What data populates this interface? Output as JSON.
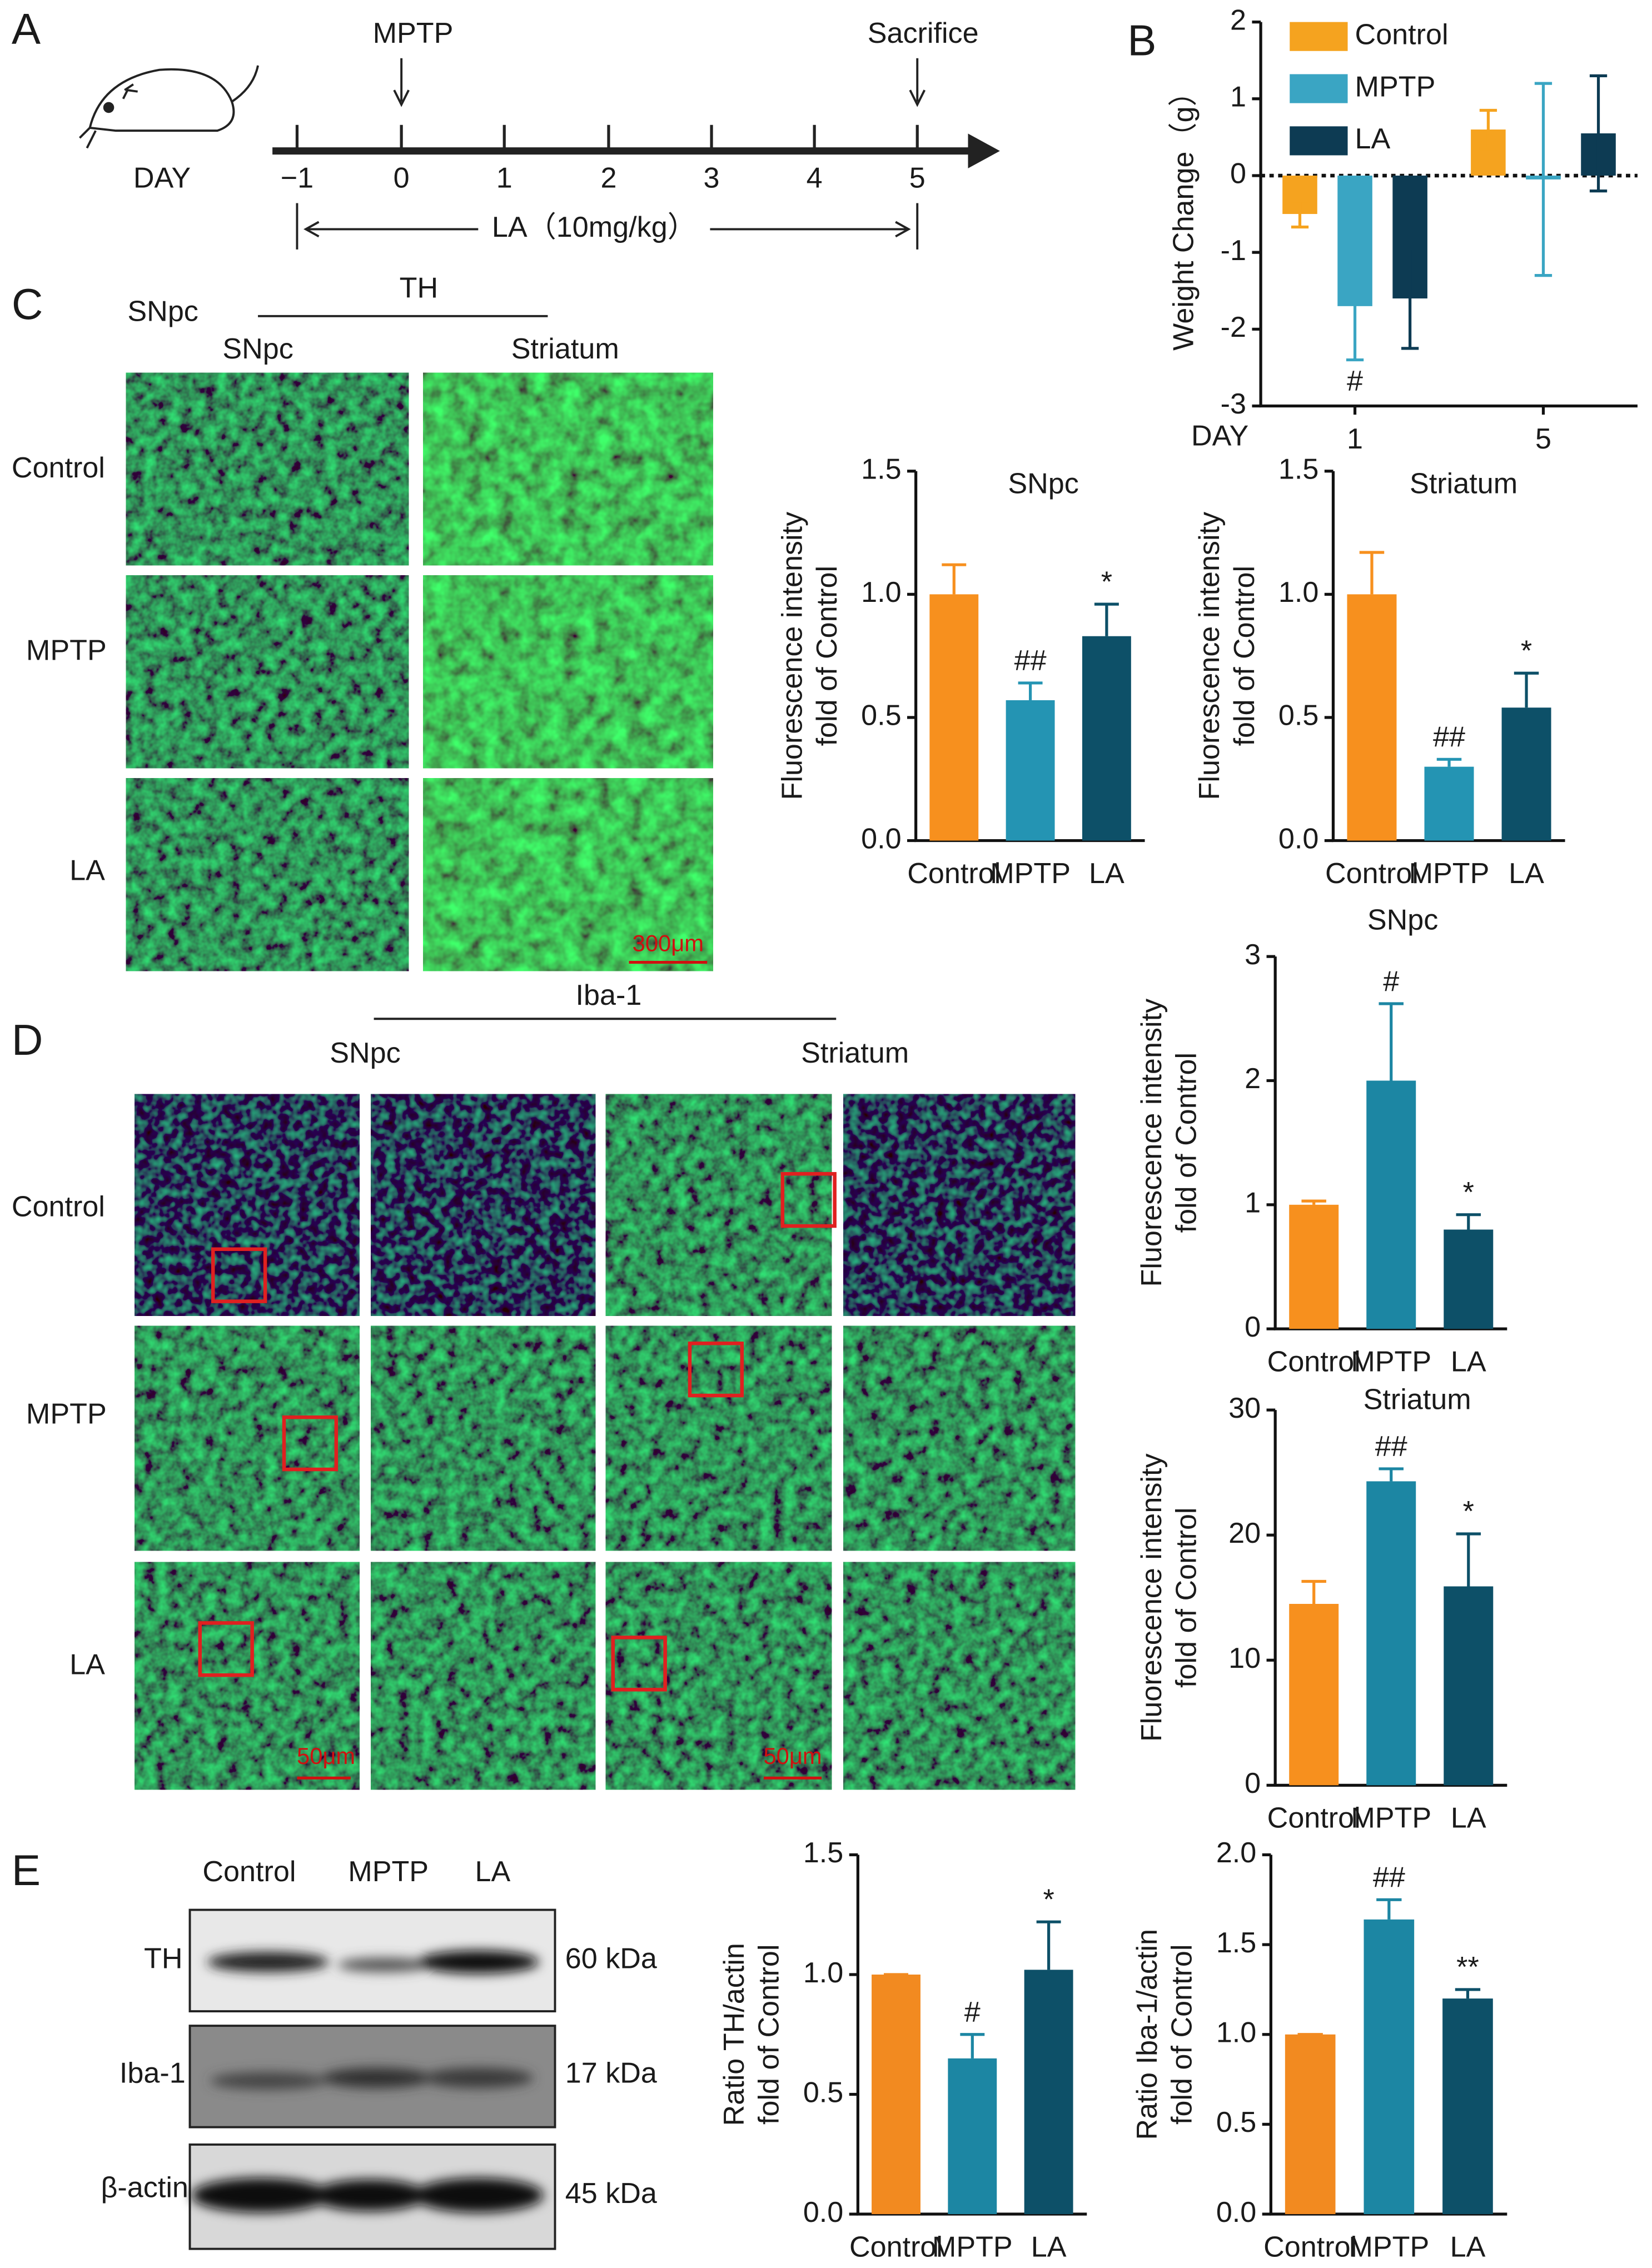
{
  "panel_labels": [
    "A",
    "B",
    "C",
    "D",
    "E"
  ],
  "timeline": {
    "day_label": "DAY",
    "days": [
      "−1",
      "0",
      "1",
      "2",
      "3",
      "4",
      "5"
    ],
    "injection": "MPTP",
    "end": "Sacrifice",
    "treatment": "LA（10mg/kg）"
  },
  "panel_c": {
    "region": "SNpc",
    "stain": "TH",
    "columns": [
      "SNpc",
      "Striatum"
    ],
    "rows": [
      "Control",
      "MPTP",
      "LA"
    ],
    "scale": "300μm"
  },
  "panel_d": {
    "stain": "Iba-1",
    "columns": [
      "SNpc",
      "Striatum"
    ],
    "rows": [
      "Control",
      "MPTP",
      "LA"
    ],
    "scales": [
      "50μm",
      "50μm"
    ]
  },
  "panel_e": {
    "lanes": [
      "Control",
      "MPTP",
      "LA"
    ],
    "proteins": [
      "TH",
      "Iba-1",
      "β-actin"
    ],
    "sizes": [
      "60 kDa",
      "17 kDa",
      "45 kDa"
    ]
  },
  "chart_data": [
    {
      "type": "grouped_bar",
      "ylabel": "Weight Change（g）",
      "x_label": "DAY",
      "categories": [
        "1",
        "5"
      ],
      "series": [
        {
          "name": "Control",
          "color": "#f5a31f",
          "values": [
            -0.5,
            0.6
          ],
          "errors": [
            0.17,
            0.25
          ],
          "annotations": [
            null,
            null
          ]
        },
        {
          "name": "MPTP",
          "color": "#3aa5c3",
          "values": [
            -1.7,
            -0.05
          ],
          "errors": [
            0.7,
            1.25
          ],
          "annotations": [
            "#",
            null
          ]
        },
        {
          "name": "LA",
          "color": "#0d3b53",
          "values": [
            -1.6,
            0.55
          ],
          "errors": [
            0.65,
            0.75
          ],
          "annotations": [
            null,
            null
          ]
        }
      ],
      "ylim": [
        -3,
        2
      ],
      "yticks": [
        -3,
        -2,
        -1,
        0,
        1,
        2
      ]
    },
    {
      "type": "bar",
      "title": "SNpc",
      "ylabel": [
        "Fluorescence intensity",
        "fold of Control"
      ],
      "categories": [
        "Control",
        "MPTP",
        "LA"
      ],
      "values": [
        1.0,
        0.57,
        0.83
      ],
      "errors": [
        0.12,
        0.07,
        0.13
      ],
      "annotations": [
        null,
        "##",
        "*"
      ],
      "colors": [
        "#f7901e",
        "#2494b3",
        "#0d5068"
      ],
      "ylim": [
        0,
        1.5
      ],
      "yticks": [
        {
          "value": 0,
          "label": "0.0"
        },
        0.5,
        {
          "value": 1,
          "label": "1.0"
        },
        1.5
      ]
    },
    {
      "type": "bar",
      "title": "Striatum",
      "ylabel": [
        "Fluorescence intensity",
        "fold of Control"
      ],
      "categories": [
        "Control",
        "MPTP",
        "LA"
      ],
      "values": [
        1.0,
        0.3,
        0.54
      ],
      "errors": [
        0.17,
        0.03,
        0.14
      ],
      "annotations": [
        null,
        "##",
        "*"
      ],
      "colors": [
        "#f7901e",
        "#2494b3",
        "#0d5068"
      ],
      "ylim": [
        0,
        1.5
      ],
      "yticks": [
        {
          "value": 0,
          "label": "0.0"
        },
        0.5,
        {
          "value": 1,
          "label": "1.0"
        },
        1.5
      ]
    },
    {
      "type": "bar",
      "title": "SNpc",
      "ylabel": [
        "Fluorescence intensity",
        "fold of Control"
      ],
      "categories": [
        "Control",
        "MPTP",
        "LA"
      ],
      "values": [
        1.0,
        2.0,
        0.8
      ],
      "errors": [
        0.03,
        0.62,
        0.12
      ],
      "annotations": [
        null,
        "#",
        "*"
      ],
      "colors": [
        "#f7901e",
        "#1c86a3",
        "#0d5068"
      ],
      "ylim": [
        0,
        3
      ],
      "yticks": [
        0,
        1,
        2,
        3
      ]
    },
    {
      "type": "bar",
      "title": "Striatum",
      "ylabel": [
        "Fluorescence intensity",
        "fold of Control"
      ],
      "categories": [
        "Control",
        "MPTP",
        "LA"
      ],
      "values": [
        14.5,
        24.3,
        15.9
      ],
      "errors": [
        1.8,
        1.0,
        4.2
      ],
      "annotations": [
        null,
        "##",
        "*"
      ],
      "colors": [
        "#f7901e",
        "#1c86a3",
        "#0d5068"
      ],
      "ylim": [
        0,
        30
      ],
      "yticks": [
        0,
        10,
        20,
        30
      ]
    },
    {
      "type": "bar",
      "ylabel": [
        "Ratio TH/actin",
        "fold of Control"
      ],
      "categories": [
        "Control",
        "MPTP",
        "LA"
      ],
      "values": [
        1.0,
        0.65,
        1.02
      ],
      "errors": [
        0,
        0.1,
        0.2
      ],
      "annotations": [
        null,
        "#",
        "*"
      ],
      "colors": [
        "#f28a20",
        "#1c86a3",
        "#0d5068"
      ],
      "ylim": [
        0,
        1.5
      ],
      "yticks": [
        {
          "value": 0,
          "label": "0.0"
        },
        0.5,
        {
          "value": 1,
          "label": "1.0"
        },
        1.5
      ]
    },
    {
      "type": "bar",
      "ylabel": [
        "Ratio Iba-1/actin",
        "fold of Control"
      ],
      "categories": [
        "Control",
        "MPTP",
        "LA"
      ],
      "values": [
        1.0,
        1.64,
        1.2
      ],
      "errors": [
        0,
        0.11,
        0.05
      ],
      "annotations": [
        null,
        "##",
        "**"
      ],
      "colors": [
        "#f28a20",
        "#1c86a3",
        "#0d5068"
      ],
      "ylim": [
        0,
        2
      ],
      "yticks": [
        {
          "value": 0,
          "label": "0.0"
        },
        0.5,
        {
          "value": 1,
          "label": "1.0"
        },
        1.5,
        {
          "value": 2,
          "label": "2.0"
        }
      ]
    }
  ]
}
